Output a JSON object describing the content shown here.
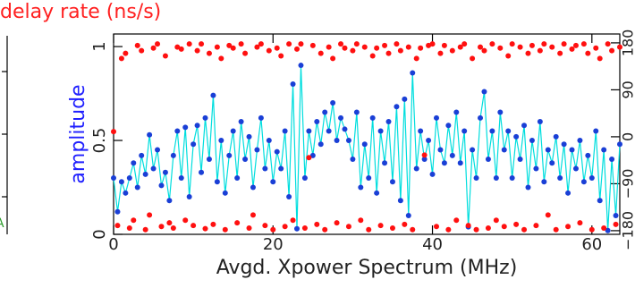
{
  "chart_data": {
    "type": "line",
    "title": "delay rate (ns/s)",
    "x_label": "Avgd. Xpower Spectrum (MHz)",
    "y_label": "amplitude",
    "left_panel_fragment": "A",
    "xlim": [
      0,
      63.5
    ],
    "xticks": [
      0,
      20,
      40,
      60
    ],
    "ylim": [
      0,
      1.067
    ],
    "yticks": [
      0,
      0.5,
      1
    ],
    "y2lim": [
      -187,
      197
    ],
    "y2ticks": [
      {
        "value": -180,
        "label": "−180"
      },
      {
        "value": -90,
        "label": "−90"
      },
      0,
      90,
      180
    ],
    "x": [
      0,
      0.5,
      1,
      1.5,
      2,
      2.5,
      3,
      3.5,
      4,
      4.5,
      5,
      5.5,
      6,
      6.5,
      7,
      7.5,
      8,
      8.5,
      9,
      9.5,
      10,
      10.5,
      11,
      11.5,
      12,
      12.5,
      13,
      13.5,
      14,
      14.5,
      15,
      15.5,
      16,
      16.5,
      17,
      17.5,
      18,
      18.5,
      19,
      19.5,
      20,
      20.5,
      21,
      21.5,
      22,
      22.5,
      23,
      23.5,
      24,
      24.5,
      25,
      25.5,
      26,
      26.5,
      27,
      27.5,
      28,
      28.5,
      29,
      29.5,
      30,
      30.5,
      31,
      31.5,
      32,
      32.5,
      33,
      33.5,
      34,
      34.5,
      35,
      35.5,
      36,
      36.5,
      37,
      37.5,
      38,
      38.5,
      39,
      39.5,
      40,
      40.5,
      41,
      41.5,
      42,
      42.5,
      43,
      43.5,
      44,
      44.5,
      45,
      45.5,
      46,
      46.5,
      47,
      47.5,
      48,
      48.5,
      49,
      49.5,
      50,
      50.5,
      51,
      51.5,
      52,
      52.5,
      53,
      53.5,
      54,
      54.5,
      55,
      55.5,
      56,
      56.5,
      57,
      57.5,
      58,
      58.5,
      59,
      59.5,
      60,
      60.5,
      61,
      61.5,
      62,
      62.5,
      63,
      63.5
    ],
    "series": [
      {
        "color": "#1a3fd6",
        "line_color": "#00dede",
        "values": [
          0.3,
          0.12,
          0.28,
          0.22,
          0.3,
          0.38,
          0.25,
          0.42,
          0.32,
          0.53,
          0.35,
          0.45,
          0.26,
          0.33,
          0.18,
          0.42,
          0.55,
          0.3,
          0.57,
          0.2,
          0.48,
          0.58,
          0.33,
          0.62,
          0.4,
          0.74,
          0.28,
          0.5,
          0.22,
          0.42,
          0.55,
          0.3,
          0.6,
          0.4,
          0.52,
          0.25,
          0.45,
          0.62,
          0.35,
          0.5,
          0.28,
          0.44,
          0.35,
          0.55,
          0.2,
          0.8,
          0.03,
          0.9,
          0.3,
          0.55,
          0.42,
          0.6,
          0.48,
          0.65,
          0.55,
          0.7,
          0.5,
          0.62,
          0.56,
          0.5,
          0.4,
          0.65,
          0.25,
          0.48,
          0.3,
          0.62,
          0.22,
          0.55,
          0.38,
          0.6,
          0.28,
          0.68,
          0.18,
          0.72,
          0.1,
          0.86,
          0.35,
          0.55,
          0.4,
          0.5,
          0.32,
          0.62,
          0.45,
          0.38,
          0.58,
          0.42,
          0.65,
          0.38,
          0.55,
          0.04,
          0.45,
          0.3,
          0.62,
          0.76,
          0.4,
          0.55,
          0.3,
          0.65,
          0.45,
          0.55,
          0.3,
          0.52,
          0.4,
          0.58,
          0.25,
          0.5,
          0.35,
          0.6,
          0.28,
          0.45,
          0.38,
          0.52,
          0.3,
          0.48,
          0.22,
          0.45,
          0.35,
          0.5,
          0.28,
          0.42,
          0.3,
          0.55,
          0.18,
          0.45,
          0.02,
          0.4,
          0.1,
          0.48
        ]
      },
      {
        "color": "#ff1010",
        "axis": "y2",
        "values": [
          10,
          -170,
          150,
          160,
          -175,
          -160,
          175,
          165,
          -178,
          -150,
          170,
          178,
          -172,
          155,
          -165,
          -175,
          172,
          168,
          -160,
          178,
          -170,
          165,
          178,
          -176,
          160,
          -168,
          172,
          150,
          -178,
          175,
          170,
          -165,
          178,
          160,
          -175,
          -150,
          172,
          178,
          -170,
          165,
          -178,
          170,
          155,
          -172,
          178,
          -160,
          168,
          178,
          -175,
          -40,
          175,
          -168,
          160,
          -178,
          172,
          150,
          -165,
          178,
          170,
          -172,
          165,
          178,
          -160,
          172,
          -178,
          155,
          170,
          -170,
          175,
          160,
          -175,
          178,
          165,
          -168,
          172,
          -178,
          150,
          170,
          -35,
          175,
          178,
          -172,
          160,
          175,
          -178,
          165,
          -160,
          172,
          178,
          -170,
          150,
          -178,
          172,
          165,
          -175,
          178,
          -160,
          170,
          -172,
          155,
          178,
          -168,
          172,
          -178,
          160,
          175,
          -170,
          165,
          178,
          -150,
          172,
          -178,
          160,
          178,
          -172,
          168,
          175,
          -165,
          178,
          160,
          -178,
          170,
          150,
          -175,
          178,
          165,
          -168,
          172
        ]
      }
    ]
  }
}
